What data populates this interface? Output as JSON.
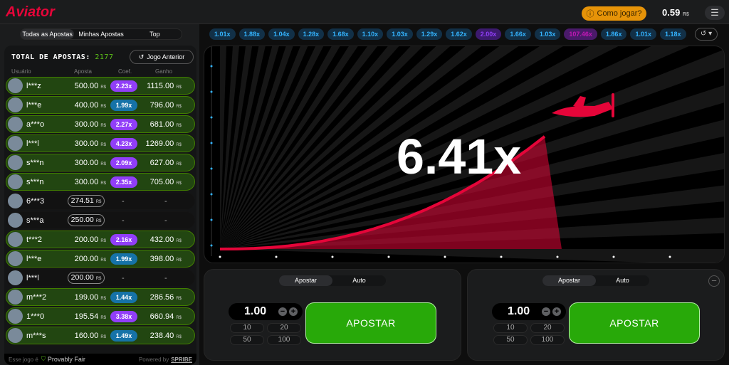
{
  "header": {
    "logo": "Aviator",
    "how_to": "Como jogar?",
    "balance": "0.59",
    "currency": "R$"
  },
  "left": {
    "tabs": [
      "Todas as Apostas",
      "Minhas Apostas",
      "Top"
    ],
    "total_label": "TOTAL DE APOSTAS:",
    "total_value": "2177",
    "prev_game": "Jogo Anterior",
    "columns": [
      "Usuário",
      "Aposta",
      "Coef.",
      "Ganho"
    ],
    "rows": [
      {
        "user": "l***z",
        "bet": "500.00",
        "coef": "2.23x",
        "coef_color": "#913ef8",
        "win": "1115.00"
      },
      {
        "user": "l***e",
        "bet": "400.00",
        "coef": "1.99x",
        "coef_color": "#1673a8",
        "win": "796.00"
      },
      {
        "user": "a***o",
        "bet": "300.00",
        "coef": "2.27x",
        "coef_color": "#913ef8",
        "win": "681.00"
      },
      {
        "user": "l***l",
        "bet": "300.00",
        "coef": "4.23x",
        "coef_color": "#913ef8",
        "win": "1269.00"
      },
      {
        "user": "s***n",
        "bet": "300.00",
        "coef": "2.09x",
        "coef_color": "#913ef8",
        "win": "627.00"
      },
      {
        "user": "s***n",
        "bet": "300.00",
        "coef": "2.35x",
        "coef_color": "#913ef8",
        "win": "705.00"
      },
      {
        "user": "6***3",
        "bet": "274.51",
        "coef": "-",
        "win": "-"
      },
      {
        "user": "s***a",
        "bet": "250.00",
        "coef": "-",
        "win": "-"
      },
      {
        "user": "t***2",
        "bet": "200.00",
        "coef": "2.16x",
        "coef_color": "#913ef8",
        "win": "432.00"
      },
      {
        "user": "l***e",
        "bet": "200.00",
        "coef": "1.99x",
        "coef_color": "#1673a8",
        "win": "398.00"
      },
      {
        "user": "l***l",
        "bet": "200.00",
        "coef": "-",
        "win": "-"
      },
      {
        "user": "m***2",
        "bet": "199.00",
        "coef": "1.44x",
        "coef_color": "#1673a8",
        "win": "286.56"
      },
      {
        "user": "1***0",
        "bet": "195.54",
        "coef": "3.38x",
        "coef_color": "#913ef8",
        "win": "660.94"
      },
      {
        "user": "m***s",
        "bet": "160.00",
        "coef": "1.49x",
        "coef_color": "#1673a8",
        "win": "238.40"
      }
    ],
    "footer_text": "Esse jogo é",
    "footer_fair": "Provably Fair",
    "footer_powered": "Powered by",
    "footer_brand": "SPRIBE"
  },
  "history": [
    {
      "v": "1.01x",
      "t": "b"
    },
    {
      "v": "1.88x",
      "t": "b"
    },
    {
      "v": "1.04x",
      "t": "b"
    },
    {
      "v": "1.28x",
      "t": "b"
    },
    {
      "v": "1.68x",
      "t": "b"
    },
    {
      "v": "1.10x",
      "t": "b"
    },
    {
      "v": "1.03x",
      "t": "b"
    },
    {
      "v": "1.29x",
      "t": "b"
    },
    {
      "v": "1.62x",
      "t": "b"
    },
    {
      "v": "2.00x",
      "t": "p2"
    },
    {
      "v": "1.66x",
      "t": "b"
    },
    {
      "v": "1.03x",
      "t": "b"
    },
    {
      "v": "107.46x",
      "t": "p"
    },
    {
      "v": "1.86x",
      "t": "b"
    },
    {
      "v": "1.01x",
      "t": "b"
    },
    {
      "v": "1.18x",
      "t": "b"
    }
  ],
  "game": {
    "multiplier": "6.41x",
    "curve_color": "#e50539"
  },
  "bets": [
    {
      "tabs": [
        "Apostar",
        "Auto"
      ],
      "amount": "1.00",
      "quick": [
        "10",
        "20",
        "50",
        "100"
      ],
      "button": "APOSTAR"
    },
    {
      "tabs": [
        "Apostar",
        "Auto"
      ],
      "amount": "1.00",
      "quick": [
        "10",
        "20",
        "50",
        "100"
      ],
      "button": "APOSTAR"
    }
  ]
}
